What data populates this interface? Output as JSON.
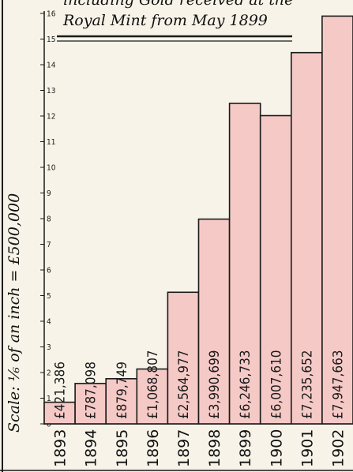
{
  "title": {
    "line1": "including Gold received at the",
    "line2": "Royal Mint from May 1899"
  },
  "scale_label": "Scale: ⅙ of an inch = £500,000",
  "colors": {
    "bar": "#f5c9c6",
    "ink": "#1a1a1a",
    "paper": "#f7f3e8"
  },
  "chart_data": {
    "type": "bar",
    "categories": [
      "1893",
      "1894",
      "1895",
      "1896",
      "1897",
      "1898",
      "1899",
      "1900",
      "1901",
      "1902"
    ],
    "values": [
      421386,
      787098,
      879749,
      1068807,
      2564977,
      3990699,
      6246733,
      6007610,
      7235652,
      7947663
    ],
    "value_labels": [
      "£421,386",
      "£787,098",
      "£879,749",
      "£1,068,807",
      "£2,564,977",
      "£3,990,699",
      "£6,246,733",
      "£6,007,610",
      "£7,235,652",
      "£7,947,663"
    ],
    "y_ticks": [
      "0",
      "1",
      "2",
      "3",
      "4",
      "5",
      "6",
      "7",
      "8",
      "9",
      "10",
      "11",
      "12",
      "13",
      "14",
      "15",
      "16"
    ],
    "y_tick_unit": 500000,
    "ylim": [
      0,
      16
    ],
    "grid": false,
    "legend": "none"
  }
}
